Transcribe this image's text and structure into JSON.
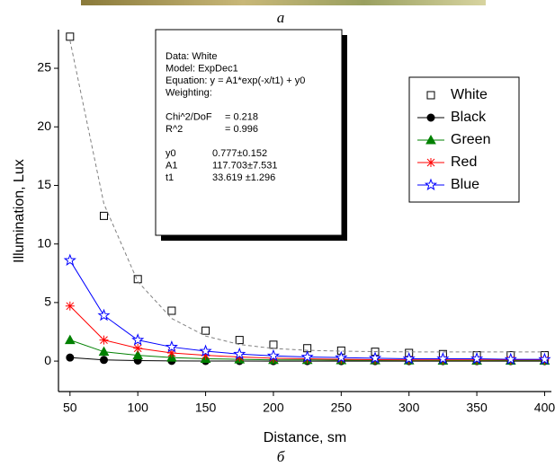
{
  "chart_data": {
    "type": "line",
    "top_label": "а",
    "bottom_label": "б",
    "x_label": "Distance, sm",
    "y_label": "Illumination, Lux",
    "x": [
      50,
      75,
      100,
      125,
      150,
      175,
      200,
      225,
      250,
      275,
      300,
      325,
      350,
      375,
      400
    ],
    "xlim": [
      41.5,
      405
    ],
    "ylim": [
      -2.6,
      28.3
    ],
    "xticks": [
      50,
      100,
      150,
      200,
      250,
      300,
      350,
      400
    ],
    "yticks": [
      0,
      5,
      10,
      15,
      20,
      25
    ],
    "legend_position": "upper right",
    "series": [
      {
        "name": "White",
        "color": "#000000",
        "marker": "square",
        "line": false,
        "values": [
          27.7,
          12.4,
          7.0,
          4.3,
          2.6,
          1.8,
          1.4,
          1.1,
          0.9,
          0.8,
          0.7,
          0.6,
          0.5,
          0.5,
          0.5
        ]
      },
      {
        "name": "Black",
        "color": "#000000",
        "marker": "circle",
        "line": true,
        "values": [
          0.3,
          0.1,
          0.05,
          0.02,
          0.01,
          0.01,
          0,
          0,
          0,
          0,
          0,
          0,
          0,
          0,
          0
        ]
      },
      {
        "name": "Green",
        "color": "#008000",
        "marker": "triangle",
        "line": true,
        "values": [
          1.8,
          0.8,
          0.5,
          0.3,
          0.2,
          0.15,
          0.1,
          0.1,
          0.08,
          0.07,
          0.06,
          0.05,
          0.05,
          0.05,
          0.05
        ]
      },
      {
        "name": "Red",
        "color": "#ff0000",
        "marker": "asterisk",
        "line": true,
        "values": [
          4.7,
          1.8,
          1.1,
          0.7,
          0.5,
          0.35,
          0.25,
          0.2,
          0.15,
          0.12,
          0.1,
          0.1,
          0.1,
          0.1,
          0.1
        ]
      },
      {
        "name": "Blue",
        "color": "#0000ff",
        "marker": "star",
        "line": true,
        "values": [
          8.6,
          3.9,
          1.8,
          1.2,
          0.85,
          0.6,
          0.45,
          0.35,
          0.3,
          0.25,
          0.2,
          0.2,
          0.2,
          0.15,
          0.15
        ]
      },
      {
        "color": "#808080",
        "marker": "none",
        "line": true,
        "dashed": true,
        "values": [
          27.38,
          13.43,
          6.79,
          3.64,
          2.14,
          1.42,
          1.08,
          0.92,
          0.85,
          0.81,
          0.79,
          0.78,
          0.78,
          0.78,
          0.78
        ]
      }
    ],
    "annotation": [
      [
        [
          "Data: White"
        ],
        [
          "Model: ExpDec1"
        ],
        [
          "Equation: y = A1*exp(-x/t1) + y0"
        ],
        [
          "Weighting:"
        ]
      ],
      [
        [
          "Chi^2/DoF",
          "= 0.218"
        ],
        [
          "R^2",
          "= 0.996"
        ]
      ],
      [
        [
          "y0",
          "0.777±0.152"
        ],
        [
          "A1",
          "117.703±7.531"
        ],
        [
          "t1",
          "33.619 ±1.296"
        ]
      ]
    ]
  }
}
